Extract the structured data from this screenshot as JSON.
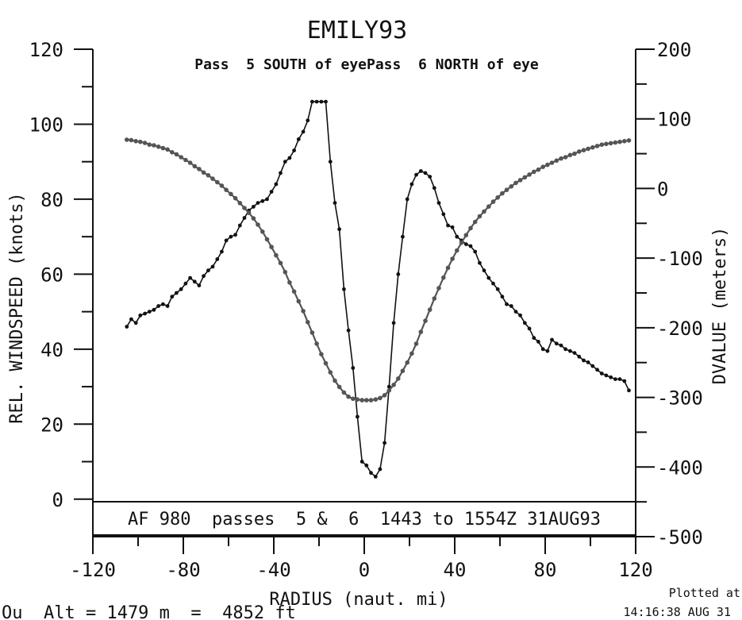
{
  "chart_data": {
    "type": "line",
    "title": "EMILY93",
    "subtitle": "Pass  5 SOUTH of eyePass  6 NORTH of eye",
    "annotation": "AF 980  passes  5 &  6  1443 to 1554Z 31AUG93",
    "xlabel": "RADIUS (naut. mi)",
    "ylabel": "REL. WINDSPEED (knots)",
    "y2label": "DVALUE (meters)",
    "xlim": [
      -120,
      120
    ],
    "ylim": [
      -10,
      120
    ],
    "y2lim": [
      -500,
      200
    ],
    "x_ticks": [
      "-120",
      "-80",
      "-40",
      "0",
      "40",
      "80",
      "120"
    ],
    "y_ticks": [
      "0",
      "20",
      "40",
      "60",
      "80",
      "100",
      "120"
    ],
    "y2_ticks": [
      "-500",
      "-400",
      "-300",
      "-200",
      "-100",
      "0",
      "100",
      "200"
    ],
    "grid": false,
    "series": [
      {
        "axis": "left",
        "color": "#111111",
        "points": [
          [
            -105,
            46
          ],
          [
            -103,
            48
          ],
          [
            -101,
            47
          ],
          [
            -99,
            49
          ],
          [
            -97,
            49.5
          ],
          [
            -95,
            50
          ],
          [
            -93,
            50.5
          ],
          [
            -91,
            51.5
          ],
          [
            -89,
            52
          ],
          [
            -87,
            51.5
          ],
          [
            -85,
            54
          ],
          [
            -83,
            55
          ],
          [
            -81,
            56
          ],
          [
            -79,
            57.5
          ],
          [
            -77,
            59
          ],
          [
            -75,
            58
          ],
          [
            -73,
            57
          ],
          [
            -71,
            59.5
          ],
          [
            -69,
            61
          ],
          [
            -67,
            62
          ],
          [
            -65,
            64
          ],
          [
            -63,
            66
          ],
          [
            -61,
            69
          ],
          [
            -59,
            70
          ],
          [
            -57,
            70.5
          ],
          [
            -55,
            73
          ],
          [
            -53,
            75
          ],
          [
            -51,
            77
          ],
          [
            -49,
            78
          ],
          [
            -47,
            79
          ],
          [
            -45,
            79.5
          ],
          [
            -43,
            80
          ],
          [
            -41,
            82
          ],
          [
            -39,
            84
          ],
          [
            -37,
            87
          ],
          [
            -35,
            90
          ],
          [
            -33,
            91
          ],
          [
            -31,
            93
          ],
          [
            -29,
            96
          ],
          [
            -27,
            98
          ],
          [
            -25,
            101
          ],
          [
            -23,
            106
          ],
          [
            -21,
            106
          ],
          [
            -19,
            106
          ],
          [
            -17,
            106
          ],
          [
            -15,
            90
          ],
          [
            -13,
            79
          ],
          [
            -11,
            72
          ],
          [
            -9,
            56
          ],
          [
            -7,
            45
          ],
          [
            -5,
            35
          ],
          [
            -3,
            22
          ],
          [
            -1,
            10
          ],
          [
            1,
            9
          ],
          [
            3,
            7
          ],
          [
            5,
            6
          ],
          [
            7,
            8
          ],
          [
            9,
            15
          ],
          [
            11,
            30
          ],
          [
            13,
            47
          ],
          [
            15,
            60
          ],
          [
            17,
            70
          ],
          [
            19,
            80
          ],
          [
            21,
            84
          ],
          [
            23,
            86.5
          ],
          [
            25,
            87.5
          ],
          [
            27,
            87
          ],
          [
            29,
            86
          ],
          [
            31,
            83
          ],
          [
            33,
            79
          ],
          [
            35,
            76
          ],
          [
            37,
            73
          ],
          [
            39,
            72.5
          ],
          [
            41,
            70
          ],
          [
            43,
            69
          ],
          [
            45,
            68
          ],
          [
            47,
            67.5
          ],
          [
            49,
            66
          ],
          [
            51,
            63
          ],
          [
            53,
            61
          ],
          [
            55,
            59
          ],
          [
            57,
            57.5
          ],
          [
            59,
            56
          ],
          [
            61,
            54
          ],
          [
            63,
            52
          ],
          [
            65,
            51.5
          ],
          [
            67,
            50
          ],
          [
            69,
            49
          ],
          [
            71,
            47
          ],
          [
            73,
            45.5
          ],
          [
            75,
            43
          ],
          [
            77,
            42
          ],
          [
            79,
            40
          ],
          [
            81,
            39.5
          ],
          [
            83,
            42.5
          ],
          [
            85,
            41.5
          ],
          [
            87,
            41
          ],
          [
            89,
            40
          ],
          [
            91,
            39.5
          ],
          [
            93,
            39
          ],
          [
            95,
            38
          ],
          [
            97,
            37
          ],
          [
            99,
            36.5
          ],
          [
            101,
            35.5
          ],
          [
            103,
            34.5
          ],
          [
            105,
            33.5
          ],
          [
            107,
            33
          ],
          [
            109,
            32.5
          ],
          [
            111,
            32
          ],
          [
            113,
            32
          ],
          [
            115,
            31.5
          ],
          [
            117,
            29
          ]
        ]
      },
      {
        "axis": "right",
        "color": "#555555",
        "points": [
          [
            -105,
            70
          ],
          [
            -103,
            69.5
          ],
          [
            -101,
            68
          ],
          [
            -99,
            67
          ],
          [
            -97,
            65.5
          ],
          [
            -95,
            63
          ],
          [
            -93,
            62
          ],
          [
            -91,
            60
          ],
          [
            -89,
            58
          ],
          [
            -87,
            56
          ],
          [
            -85,
            52
          ],
          [
            -83,
            49
          ],
          [
            -81,
            45
          ],
          [
            -79,
            41
          ],
          [
            -77,
            37
          ],
          [
            -75,
            32
          ],
          [
            -73,
            28
          ],
          [
            -71,
            23
          ],
          [
            -69,
            19
          ],
          [
            -67,
            14
          ],
          [
            -65,
            9
          ],
          [
            -63,
            4
          ],
          [
            -61,
            -2
          ],
          [
            -59,
            -8
          ],
          [
            -57,
            -14
          ],
          [
            -55,
            -21
          ],
          [
            -53,
            -28
          ],
          [
            -51,
            -35
          ],
          [
            -49,
            -43
          ],
          [
            -47,
            -52
          ],
          [
            -45,
            -62
          ],
          [
            -43,
            -73
          ],
          [
            -41,
            -84
          ],
          [
            -39,
            -96
          ],
          [
            -37,
            -107
          ],
          [
            -35,
            -120
          ],
          [
            -33,
            -135
          ],
          [
            -31,
            -148
          ],
          [
            -29,
            -162
          ],
          [
            -27,
            -176
          ],
          [
            -25,
            -192
          ],
          [
            -23,
            -207
          ],
          [
            -21,
            -223
          ],
          [
            -19,
            -238
          ],
          [
            -17,
            -251
          ],
          [
            -15,
            -264
          ],
          [
            -13,
            -276
          ],
          [
            -11,
            -285
          ],
          [
            -9,
            -293
          ],
          [
            -7,
            -299
          ],
          [
            -5,
            -302
          ],
          [
            -3,
            -303
          ],
          [
            -1,
            -304
          ],
          [
            1,
            -304
          ],
          [
            3,
            -304
          ],
          [
            5,
            -303
          ],
          [
            7,
            -301
          ],
          [
            9,
            -297
          ],
          [
            11,
            -290
          ],
          [
            13,
            -282
          ],
          [
            15,
            -273
          ],
          [
            17,
            -262
          ],
          [
            19,
            -250
          ],
          [
            21,
            -237
          ],
          [
            23,
            -223
          ],
          [
            25,
            -206
          ],
          [
            27,
            -190
          ],
          [
            29,
            -174
          ],
          [
            31,
            -158
          ],
          [
            33,
            -143
          ],
          [
            35,
            -128
          ],
          [
            37,
            -114
          ],
          [
            39,
            -101
          ],
          [
            41,
            -89
          ],
          [
            43,
            -78
          ],
          [
            45,
            -67
          ],
          [
            47,
            -57
          ],
          [
            49,
            -48
          ],
          [
            51,
            -40
          ],
          [
            53,
            -33
          ],
          [
            55,
            -26
          ],
          [
            57,
            -19
          ],
          [
            59,
            -13
          ],
          [
            61,
            -7
          ],
          [
            63,
            -2
          ],
          [
            65,
            3
          ],
          [
            67,
            8
          ],
          [
            69,
            12
          ],
          [
            71,
            16
          ],
          [
            73,
            20
          ],
          [
            75,
            24
          ],
          [
            77,
            27
          ],
          [
            79,
            31
          ],
          [
            81,
            34
          ],
          [
            83,
            37
          ],
          [
            85,
            40
          ],
          [
            87,
            43
          ],
          [
            89,
            45
          ],
          [
            91,
            48
          ],
          [
            93,
            50
          ],
          [
            95,
            53
          ],
          [
            97,
            55
          ],
          [
            99,
            57
          ],
          [
            101,
            59
          ],
          [
            103,
            61
          ],
          [
            105,
            63
          ],
          [
            107,
            64
          ],
          [
            109,
            65
          ],
          [
            111,
            66
          ],
          [
            113,
            67
          ],
          [
            115,
            68
          ],
          [
            117,
            69
          ]
        ]
      }
    ]
  },
  "footer": {
    "bottom_left": "Ou  Alt = 1479 m  =  4852 ft",
    "plotted_line1": "Plotted at",
    "plotted_line2": "14:16:38 AUG 31"
  }
}
